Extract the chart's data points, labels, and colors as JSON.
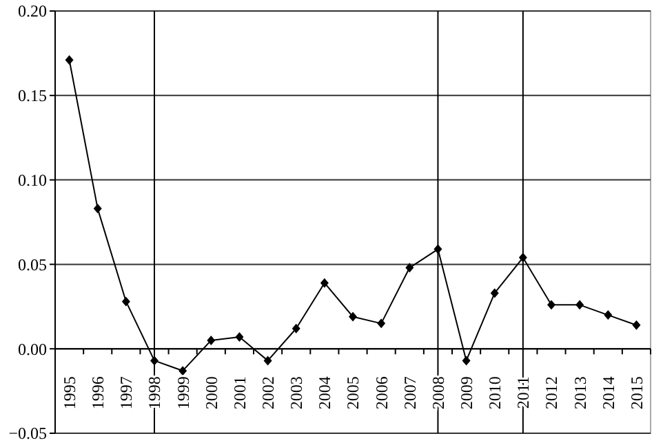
{
  "chart_data": {
    "type": "line",
    "categories": [
      "1995",
      "1996",
      "1997",
      "1998",
      "1999",
      "2000",
      "2001",
      "2002",
      "2003",
      "2004",
      "2005",
      "2006",
      "2007",
      "2008",
      "2009",
      "2010",
      "2011",
      "2012",
      "2013",
      "2014",
      "2015"
    ],
    "series": [
      {
        "color": "#000000",
        "values": [
          0.171,
          0.083,
          0.028,
          -0.007,
          -0.013,
          0.005,
          0.007,
          -0.007,
          0.012,
          0.039,
          0.019,
          0.015,
          0.048,
          0.059,
          -0.007,
          0.033,
          0.054,
          0.026,
          0.026,
          0.02,
          0.014
        ]
      }
    ],
    "ylim": [
      -0.05,
      0.2
    ],
    "yticks": [
      {
        "value": -0.05,
        "label": "−0.05"
      },
      {
        "value": 0,
        "label": "0.00"
      },
      {
        "value": 0.05,
        "label": "0.05"
      },
      {
        "value": 0.1,
        "label": "0.10"
      },
      {
        "value": 0.15,
        "label": "0.15"
      },
      {
        "value": 0.2,
        "label": "0.20"
      }
    ],
    "grid": "y",
    "marker": "diamond",
    "line_style": "solid",
    "ref_lines": [
      {
        "axis": "x",
        "value": "1998",
        "color": "#000000"
      },
      {
        "axis": "x",
        "value": "2008",
        "color": "#000000"
      },
      {
        "axis": "x",
        "value": "2011",
        "color": "#000000"
      }
    ]
  }
}
